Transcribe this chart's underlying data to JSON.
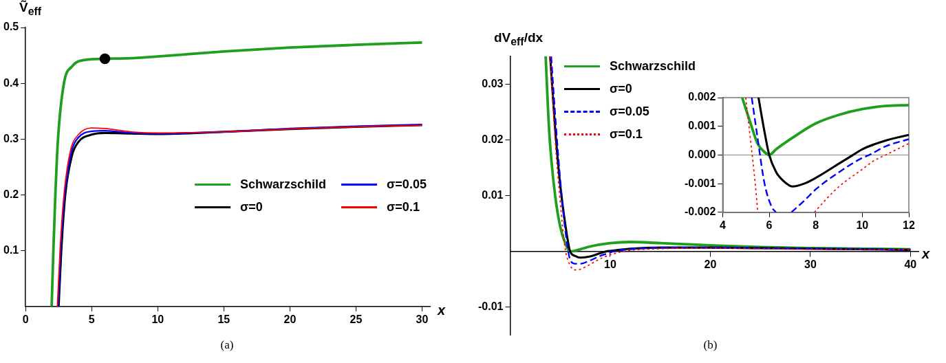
{
  "chart_data": [
    {
      "type": "line",
      "ylabel": "Ṽ$_{eff}$",
      "xlabel": "x",
      "xlim": [
        0,
        30.6
      ],
      "ylim": [
        0,
        0.5
      ],
      "xticks": [
        0,
        5,
        10,
        15,
        20,
        25,
        30
      ],
      "yticks": [
        0.1,
        0.2,
        0.3,
        0.4,
        0.5
      ],
      "legend": "right",
      "annotations": [
        "(a)"
      ],
      "series": [
        {
          "name": "Schwarzschild",
          "color": "#1ea01e",
          "x": [
            1.97,
            2.1,
            2.25,
            2.45,
            2.9,
            3.5,
            4.5,
            6,
            8,
            10,
            15,
            20,
            25,
            30
          ],
          "values": [
            0,
            0.1,
            0.2,
            0.3,
            0.4,
            0.43,
            0.442,
            0.444,
            0.445,
            0.448,
            0.457,
            0.464,
            0.469,
            0.473
          ]
        },
        {
          "name": "σ=0",
          "color": "#000000",
          "x": [
            2.5,
            2.7,
            3.0,
            3.5,
            4,
            5,
            6,
            8,
            10,
            15,
            20,
            25,
            30
          ],
          "values": [
            0,
            0.1,
            0.2,
            0.27,
            0.295,
            0.308,
            0.311,
            0.31,
            0.309,
            0.313,
            0.318,
            0.322,
            0.325
          ]
        },
        {
          "name": "σ=0.05",
          "color": "#0000ff",
          "x": [
            2.45,
            2.65,
            2.95,
            3.5,
            4,
            5,
            6,
            8,
            10,
            15,
            20,
            25,
            30
          ],
          "values": [
            0,
            0.1,
            0.2,
            0.28,
            0.303,
            0.314,
            0.315,
            0.311,
            0.31,
            0.313,
            0.319,
            0.323,
            0.326
          ]
        },
        {
          "name": "σ=0.1",
          "color": "#ff0000",
          "x": [
            2.4,
            2.6,
            2.9,
            3.4,
            4,
            5,
            6,
            8,
            10,
            15,
            20,
            25,
            30
          ],
          "values": [
            0,
            0.1,
            0.2,
            0.28,
            0.308,
            0.32,
            0.319,
            0.313,
            0.311,
            0.313,
            0.318,
            0.322,
            0.325
          ]
        },
        {
          "type": "scatter",
          "color": "#000000",
          "x": [
            6
          ],
          "values": [
            0.444
          ]
        }
      ]
    },
    {
      "type": "line",
      "ylabel": "dV$_{eff}$/dx",
      "xlabel": "x",
      "xlim": [
        0,
        40.8
      ],
      "ylim": [
        -0.015,
        0.035
      ],
      "xticks": [
        10,
        20,
        30,
        40
      ],
      "yticks": [
        -0.01,
        0.01,
        0.02,
        0.03
      ],
      "legend": "top left",
      "annotations": [
        "(b)"
      ],
      "series": [
        {
          "name": "Schwarzschild",
          "color": "#1ea01e",
          "line_style": "solid",
          "x": [
            3.55,
            3.8,
            4,
            4.5,
            5,
            5.5,
            6,
            7,
            8,
            10,
            12,
            15,
            20,
            25,
            30,
            35,
            40
          ],
          "values": [
            0.035,
            0.025,
            0.019,
            0.01,
            0.0045,
            0.0015,
            0,
            0.0004,
            0.0009,
            0.0015,
            0.0017,
            0.0015,
            0.0011,
            0.0008,
            0.0006,
            0.0005,
            0.0004
          ]
        },
        {
          "name": "σ=0",
          "color": "#000000",
          "line_style": "solid",
          "x": [
            4,
            4.5,
            5,
            5.5,
            6,
            6.5,
            7,
            8,
            9,
            9.6,
            10,
            12,
            15,
            20,
            25,
            30,
            35,
            40
          ],
          "values": [
            0.035,
            0.022,
            0.012,
            0.005,
            0,
            -0.0008,
            -0.0011,
            -0.0009,
            -0.0003,
            0,
            0.0001,
            0.0005,
            0.0007,
            0.0007,
            0.0006,
            0.0005,
            0.0004,
            0.0003
          ]
        },
        {
          "name": "σ=0.05",
          "color": "#0000ff",
          "line_style": "dashed",
          "x": [
            4.1,
            4.6,
            5,
            5.5,
            6,
            6.5,
            7,
            8,
            9,
            10,
            10.3,
            12,
            15,
            20,
            25,
            30,
            35,
            40
          ],
          "values": [
            0.035,
            0.022,
            0.013,
            0.004,
            -0.0015,
            -0.0022,
            -0.0022,
            -0.0016,
            -0.0008,
            -0.0002,
            0,
            0.0004,
            0.0007,
            0.0007,
            0.0006,
            0.0005,
            0.0004,
            0.0003
          ]
        },
        {
          "name": "σ=0.1",
          "color": "#ff0000",
          "line_style": "dotted",
          "x": [
            4,
            4.5,
            5,
            5.5,
            6,
            6.5,
            7,
            8,
            9,
            10,
            11,
            12,
            15,
            20,
            25,
            30,
            35,
            40
          ],
          "values": [
            0.035,
            0.02,
            0.009,
            0.0005,
            -0.0025,
            -0.0033,
            -0.0032,
            -0.0023,
            -0.0013,
            -0.0006,
            -0.0001,
            0.0002,
            0.0005,
            0.0006,
            0.0005,
            0.0004,
            0.0004,
            0.0003
          ]
        }
      ]
    },
    {
      "type": "line",
      "xlim": [
        4,
        12
      ],
      "ylim": [
        -0.002,
        0.002
      ],
      "xticks": [
        4,
        6,
        8,
        10,
        12
      ],
      "yticks": [
        {
          "value": -0.002,
          "label": "-0.002"
        },
        {
          "value": -0.001,
          "label": "-0.001"
        },
        {
          "value": 0,
          "label": "0.000"
        },
        {
          "value": 0.001,
          "label": "0.001"
        },
        {
          "value": 0.002,
          "label": "0.002"
        }
      ],
      "ref_lines": [
        {
          "axis": "y",
          "value": 0,
          "color": "#808080"
        }
      ],
      "series": [
        {
          "color": "#1ea01e",
          "line_style": "solid",
          "x": [
            4.84,
            5.2,
            5.5,
            5.8,
            6,
            6.3,
            7,
            8,
            9,
            10,
            11,
            12
          ],
          "values": [
            0.002,
            0.0011,
            0.0004,
            0.0001,
            0,
            0.0002,
            0.0006,
            0.0011,
            0.0014,
            0.0016,
            0.00171,
            0.00174
          ]
        },
        {
          "color": "#000000",
          "line_style": "solid",
          "x": [
            5.54,
            5.8,
            6,
            6.3,
            6.6,
            7,
            7.5,
            8,
            9,
            9.6,
            10,
            11,
            12
          ],
          "values": [
            0.002,
            0.0008,
            0,
            -0.0006,
            -0.0009,
            -0.0011,
            -0.001,
            -0.0008,
            -0.0003,
            0,
            0.0002,
            0.0005,
            0.0007
          ]
        },
        {
          "color": "#0000ff",
          "line_style": "dashed",
          "x": [
            5.25,
            5.5,
            5.8,
            6.1,
            6.29,
            6.6,
            6.95,
            7.5,
            8,
            9,
            10,
            10.3,
            11,
            12
          ],
          "values": [
            0.002,
            0.0006,
            -0.001,
            -0.0018,
            -0.002,
            null,
            -0.002,
            -0.0016,
            -0.0012,
            -0.0006,
            -0.0001,
            0,
            0.0003,
            0.00055
          ]
        },
        {
          "color": "#ff0000",
          "line_style": "dotted",
          "x": [
            4.99,
            5.2,
            5.4,
            5.51,
            6.7,
            7.94,
            8.5,
            9,
            10,
            10.5,
            11,
            12
          ],
          "values": [
            0.002,
            0.0005,
            -0.001,
            -0.002,
            null,
            -0.002,
            -0.0015,
            -0.0011,
            -0.0005,
            -0.0002,
            0,
            0.0004
          ]
        }
      ]
    }
  ]
}
